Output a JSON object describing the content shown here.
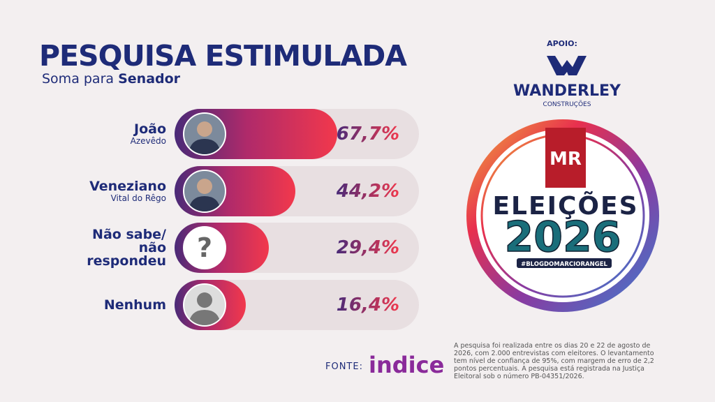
{
  "chart_data": {
    "type": "bar",
    "title": "PESQUISA ESTIMULADA",
    "subtitle_prefix": "Soma para",
    "subtitle": "Senador",
    "categories": [
      "João",
      "Veneziano",
      "Não sabe/ não respondeu",
      "Nenhum"
    ],
    "category_details": [
      "Azevêdo",
      "Vital do Rêgo",
      null,
      null
    ],
    "values": [
      67.7,
      44.2,
      29.4,
      16.4
    ],
    "value_labels": [
      "67,7%",
      "44,2%",
      "29,4%",
      "16,4%"
    ],
    "placeholder_icon": "?"
  },
  "sponsor": {
    "label": "APOIO:",
    "name": "WANDERLEY",
    "sub": "CONSTRUÇÕES"
  },
  "logo": {
    "initials": "MR",
    "line1": "ELEIÇÕES",
    "line2": "2026",
    "hashtag": "#BLOGDOMARCIORANGEL"
  },
  "source": {
    "label": "FONTE:",
    "name": "indicе",
    "note": "A pesquisa foi realizada entre os dias 20 e 22 de agosto de 2026, com 2.000 entrevistas com eleitores. O levantamento tem nível de confiança de 95%, com margem de erro de 2,2 pontos percentuais. A pesquisa está registrada na Justiça Eleitoral sob o número PB-04351/2026."
  }
}
